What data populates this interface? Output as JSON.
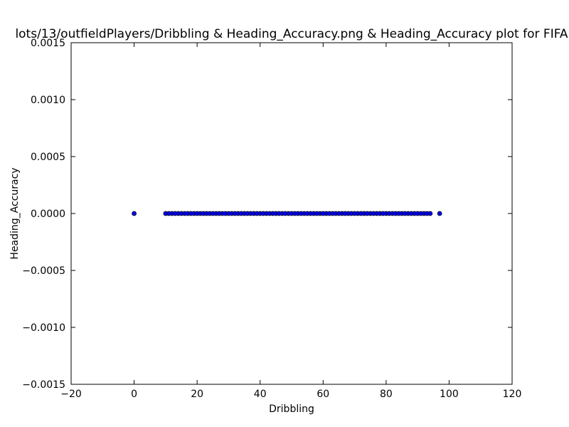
{
  "chart_data": {
    "type": "scatter",
    "title": "lots/13/outfieldPlayers/Dribbling & Heading_Accuracy.png & Heading_Accuracy plot for FIFA",
    "xlabel": "Dribbling",
    "ylabel": "Heading_Accuracy",
    "xlim": [
      -20,
      120
    ],
    "ylim": [
      -0.0015,
      0.0015
    ],
    "grid": false,
    "x_ticks": [
      -20,
      0,
      20,
      40,
      60,
      80,
      100,
      120
    ],
    "x_tick_labels": [
      "−20",
      "0",
      "20",
      "40",
      "60",
      "80",
      "100",
      "120"
    ],
    "y_ticks": [
      -0.0015,
      -0.001,
      -0.0005,
      0,
      0.0005,
      0.001,
      0.0015
    ],
    "y_tick_labels": [
      "−0.0015",
      "−0.0010",
      "−0.0005",
      "0.0000",
      "0.0005",
      "0.0010",
      "0.0015"
    ],
    "marker_color": "#0000ff",
    "marker_edge_color": "#000000",
    "series": [
      {
        "x": [
          0,
          10,
          11,
          12,
          13,
          14,
          15,
          16,
          17,
          18,
          19,
          20,
          21,
          22,
          23,
          24,
          25,
          26,
          27,
          28,
          29,
          30,
          31,
          32,
          33,
          34,
          35,
          36,
          37,
          38,
          39,
          40,
          41,
          42,
          43,
          44,
          45,
          46,
          47,
          48,
          49,
          50,
          51,
          52,
          53,
          54,
          55,
          56,
          57,
          58,
          59,
          60,
          61,
          62,
          63,
          64,
          65,
          66,
          67,
          68,
          69,
          70,
          71,
          72,
          73,
          74,
          75,
          76,
          77,
          78,
          79,
          80,
          81,
          82,
          83,
          84,
          85,
          86,
          87,
          88,
          89,
          90,
          91,
          92,
          93,
          94,
          97
        ],
        "y": [
          0,
          0,
          0,
          0,
          0,
          0,
          0,
          0,
          0,
          0,
          0,
          0,
          0,
          0,
          0,
          0,
          0,
          0,
          0,
          0,
          0,
          0,
          0,
          0,
          0,
          0,
          0,
          0,
          0,
          0,
          0,
          0,
          0,
          0,
          0,
          0,
          0,
          0,
          0,
          0,
          0,
          0,
          0,
          0,
          0,
          0,
          0,
          0,
          0,
          0,
          0,
          0,
          0,
          0,
          0,
          0,
          0,
          0,
          0,
          0,
          0,
          0,
          0,
          0,
          0,
          0,
          0,
          0,
          0,
          0,
          0,
          0,
          0,
          0,
          0,
          0,
          0,
          0,
          0,
          0,
          0,
          0,
          0,
          0,
          0,
          0,
          0
        ]
      }
    ]
  }
}
